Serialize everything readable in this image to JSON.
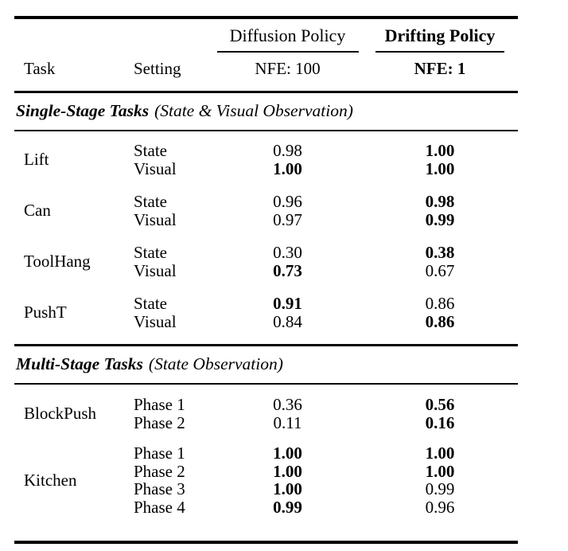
{
  "table": {
    "columns": {
      "task": "Task",
      "setting": "Setting"
    },
    "method_groups": [
      {
        "name": "Diffusion Policy",
        "nfe": "NFE: 100",
        "bold": false
      },
      {
        "name": "Drifting Policy",
        "nfe": "NFE: 1",
        "bold": true
      }
    ],
    "sections": [
      {
        "title": "Single-Stage Tasks",
        "subtitle": "(State & Visual Observation)",
        "tasks": [
          {
            "name": "Lift",
            "rows": [
              {
                "setting": "State",
                "cells": [
                  {
                    "text": "0.98",
                    "bold": false
                  },
                  {
                    "text": "1.00",
                    "bold": true
                  }
                ]
              },
              {
                "setting": "Visual",
                "cells": [
                  {
                    "text": "1.00",
                    "bold": true
                  },
                  {
                    "text": "1.00",
                    "bold": true
                  }
                ]
              }
            ]
          },
          {
            "name": "Can",
            "rows": [
              {
                "setting": "State",
                "cells": [
                  {
                    "text": "0.96",
                    "bold": false
                  },
                  {
                    "text": "0.98",
                    "bold": true
                  }
                ]
              },
              {
                "setting": "Visual",
                "cells": [
                  {
                    "text": "0.97",
                    "bold": false
                  },
                  {
                    "text": "0.99",
                    "bold": true
                  }
                ]
              }
            ]
          },
          {
            "name": "ToolHang",
            "rows": [
              {
                "setting": "State",
                "cells": [
                  {
                    "text": "0.30",
                    "bold": false
                  },
                  {
                    "text": "0.38",
                    "bold": true
                  }
                ]
              },
              {
                "setting": "Visual",
                "cells": [
                  {
                    "text": "0.73",
                    "bold": true
                  },
                  {
                    "text": "0.67",
                    "bold": false
                  }
                ]
              }
            ]
          },
          {
            "name": "PushT",
            "rows": [
              {
                "setting": "State",
                "cells": [
                  {
                    "text": "0.91",
                    "bold": true
                  },
                  {
                    "text": "0.86",
                    "bold": false
                  }
                ]
              },
              {
                "setting": "Visual",
                "cells": [
                  {
                    "text": "0.84",
                    "bold": false
                  },
                  {
                    "text": "0.86",
                    "bold": true
                  }
                ]
              }
            ]
          }
        ]
      },
      {
        "title": "Multi-Stage Tasks",
        "subtitle": "(State Observation)",
        "tasks": [
          {
            "name": "BlockPush",
            "rows": [
              {
                "setting": "Phase 1",
                "cells": [
                  {
                    "text": "0.36",
                    "bold": false
                  },
                  {
                    "text": "0.56",
                    "bold": true
                  }
                ]
              },
              {
                "setting": "Phase 2",
                "cells": [
                  {
                    "text": "0.11",
                    "bold": false
                  },
                  {
                    "text": "0.16",
                    "bold": true
                  }
                ]
              }
            ]
          },
          {
            "name": "Kitchen",
            "rows": [
              {
                "setting": "Phase 1",
                "cells": [
                  {
                    "text": "1.00",
                    "bold": true
                  },
                  {
                    "text": "1.00",
                    "bold": true
                  }
                ]
              },
              {
                "setting": "Phase 2",
                "cells": [
                  {
                    "text": "1.00",
                    "bold": true
                  },
                  {
                    "text": "1.00",
                    "bold": true
                  }
                ]
              },
              {
                "setting": "Phase 3",
                "cells": [
                  {
                    "text": "1.00",
                    "bold": true
                  },
                  {
                    "text": "0.99",
                    "bold": false
                  }
                ]
              },
              {
                "setting": "Phase 4",
                "cells": [
                  {
                    "text": "0.99",
                    "bold": true
                  },
                  {
                    "text": "0.96",
                    "bold": false
                  }
                ]
              }
            ]
          }
        ]
      }
    ]
  }
}
